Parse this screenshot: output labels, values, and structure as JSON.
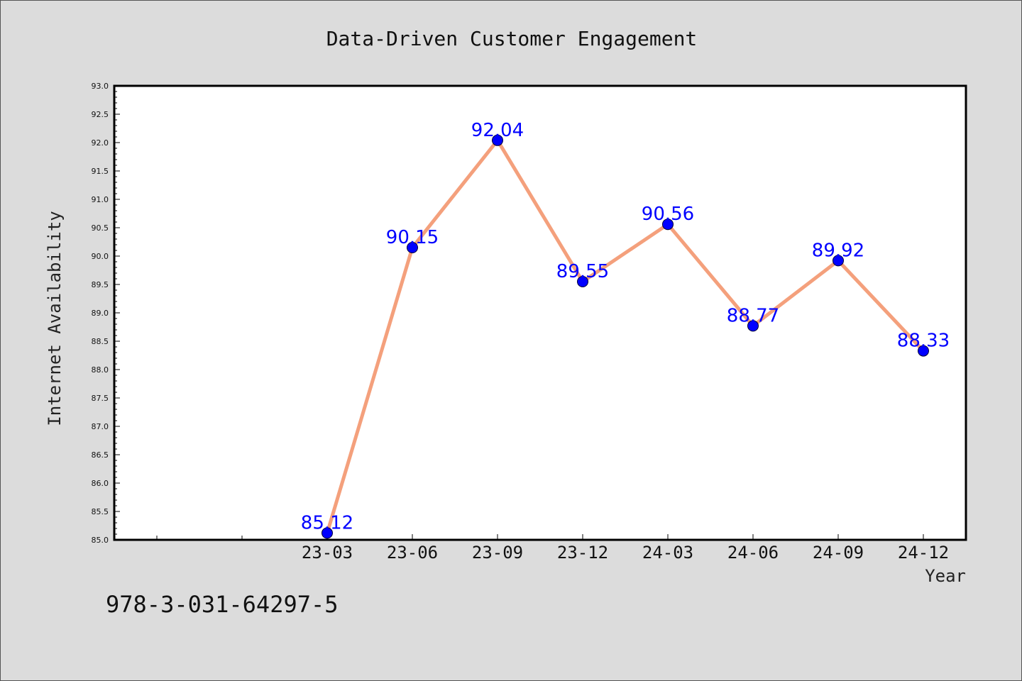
{
  "chart_data": {
    "type": "line",
    "title": "Data-Driven Customer Engagement",
    "xlabel": "Year",
    "ylabel": "Internet Availability",
    "ylim": [
      85.0,
      93.0
    ],
    "yticks": [
      "85.0",
      "85.5",
      "86.0",
      "86.5",
      "87.0",
      "87.5",
      "88.0",
      "88.5",
      "89.0",
      "89.5",
      "90.0",
      "90.5",
      "91.0",
      "91.5",
      "92.0",
      "92.5",
      "93.0"
    ],
    "categories": [
      "23-03",
      "23-06",
      "23-09",
      "23-12",
      "24-03",
      "24-06",
      "24-09",
      "24-12"
    ],
    "series": [
      {
        "values": [
          85.12,
          90.15,
          92.04,
          89.55,
          90.56,
          88.77,
          89.92,
          88.33
        ],
        "labels": [
          "85.12",
          "90.15",
          "92.04",
          "89.55",
          "90.56",
          "88.77",
          "89.92",
          "88.33"
        ],
        "line_color": "#f4a07c",
        "marker_color": "#0000ff",
        "label_color": "#0000ff"
      }
    ],
    "grid": false,
    "legend": "none"
  },
  "footer": {
    "isbn": "978-3-031-64297-5"
  },
  "colors": {
    "background": "#dcdcdc",
    "plot_area": "#ffffff",
    "axis": "#000000"
  }
}
